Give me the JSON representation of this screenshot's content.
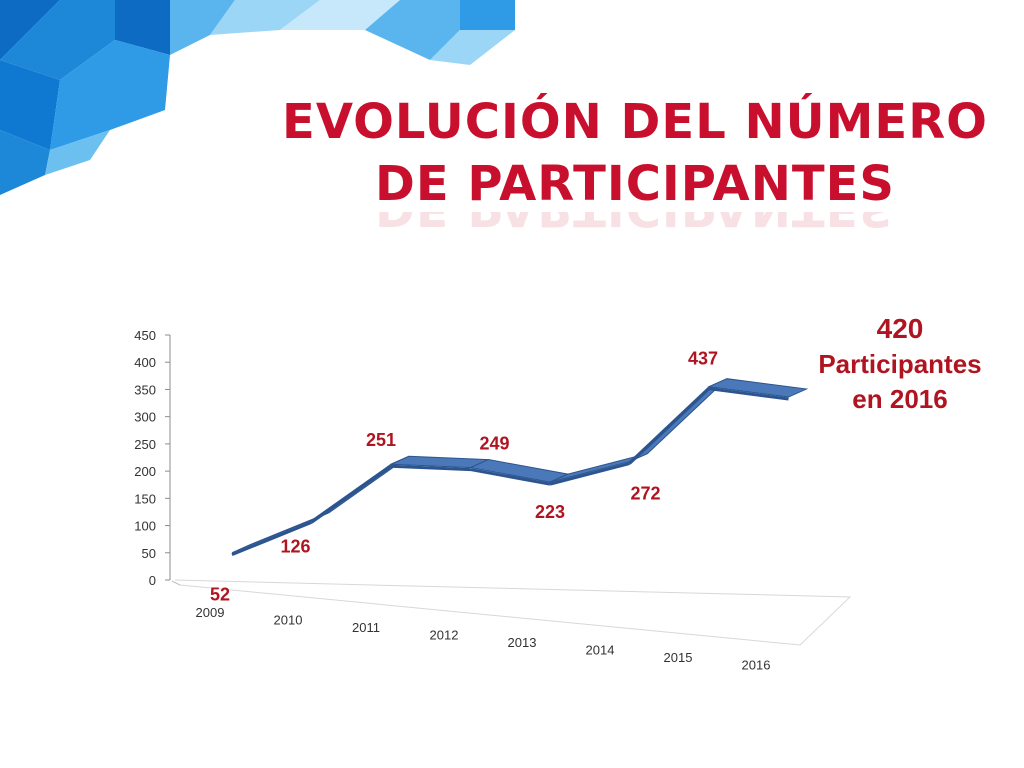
{
  "slide": {
    "title_line1": "EVOLUCIÓN DEL NÚMERO",
    "title_line2": "DE PARTICIPANTES",
    "callout": {
      "number": "420",
      "label": "Participantes",
      "year": "en 2016"
    }
  },
  "colors": {
    "title": "#c8102e",
    "data_label": "#b01420",
    "ribbon_top": "#4a78b8",
    "ribbon_side": "#2c5590",
    "decoration": [
      "#1e88d8",
      "#5ab4ee",
      "#9cd6f6",
      "#0d6bc4"
    ]
  },
  "chart_data": {
    "type": "line",
    "style": "3d-ribbon",
    "categories": [
      "2009",
      "2010",
      "2011",
      "2012",
      "2013",
      "2014",
      "2015",
      "2016"
    ],
    "values": [
      52,
      126,
      251,
      249,
      223,
      272,
      437,
      420
    ],
    "labels": [
      "52",
      "126",
      "251",
      "249",
      "223",
      "272",
      "437"
    ],
    "yticks": [
      "0",
      "50",
      "100",
      "150",
      "200",
      "250",
      "300",
      "350",
      "400",
      "450"
    ],
    "ylim": [
      0,
      450
    ],
    "title": "",
    "xlabel": "",
    "ylabel": "",
    "legend": "none"
  }
}
